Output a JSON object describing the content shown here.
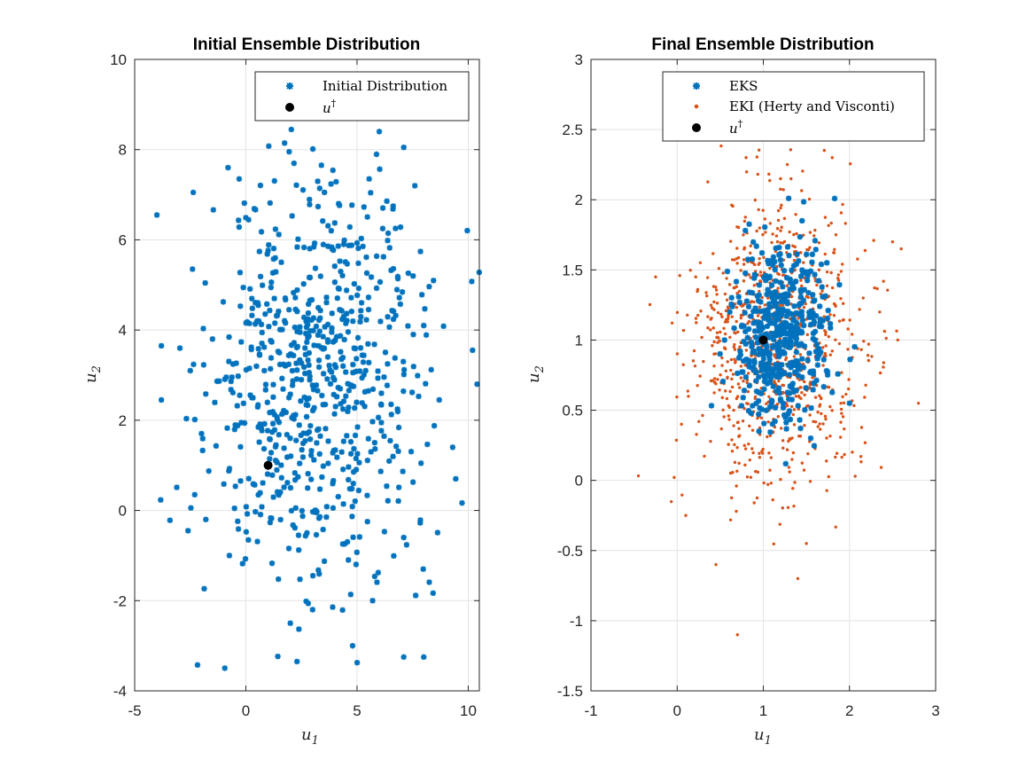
{
  "colors": {
    "eks": "#0072BD",
    "eki": "#D95319",
    "truth": "#000000",
    "grid": "#e3e3e3",
    "axis": "#262626"
  },
  "chart_data": [
    {
      "type": "scatter",
      "title": "Initial Ensemble Distribution",
      "xlabel": "u",
      "xlabel_sub": "1",
      "ylabel": "u",
      "ylabel_sub": "2",
      "xlim": [
        -5,
        10.5
      ],
      "ylim": [
        -4,
        10
      ],
      "xticks": [
        -5,
        0,
        5,
        10
      ],
      "yticks": [
        -4,
        -2,
        0,
        2,
        4,
        6,
        8,
        10
      ],
      "grid": true,
      "legend_position": "top-right",
      "series": [
        {
          "name": "Initial Distribution",
          "marker": "star",
          "color": "#0072BD",
          "count": 700,
          "mean": [
            3.0,
            3.0
          ],
          "sd": [
            2.4,
            2.3
          ],
          "seed": 11,
          "points": [
            [
              -4.0,
              6.55
            ],
            [
              -3.8,
              3.65
            ],
            [
              -3.8,
              2.45
            ],
            [
              -2.6,
              -0.45
            ],
            [
              -2.3,
              0.35
            ],
            [
              -2.4,
              5.35
            ],
            [
              -1.8,
              -0.2
            ],
            [
              -0.8,
              7.6
            ],
            [
              -0.3,
              7.35
            ],
            [
              6.0,
              8.4
            ],
            [
              7.1,
              8.05
            ],
            [
              7.6,
              7.2
            ],
            [
              8.0,
              -3.25
            ],
            [
              7.1,
              -3.25
            ],
            [
              4.8,
              -3.0
            ],
            [
              2.3,
              -3.35
            ],
            [
              2.0,
              -2.5
            ],
            [
              3.0,
              -2.2
            ],
            [
              10.4,
              2.8
            ],
            [
              9.3,
              1.4
            ],
            [
              8.0,
              4.1
            ],
            [
              7.1,
              -0.6
            ],
            [
              5.7,
              -2.0
            ],
            [
              -2.5,
              3.1
            ],
            [
              -1.5,
              3.8
            ]
          ]
        },
        {
          "name": "u",
          "name_sup": "†",
          "marker": "dot",
          "color": "#000000",
          "points": [
            [
              1.0,
              1.0
            ]
          ]
        }
      ]
    },
    {
      "type": "scatter",
      "title": "Final Ensemble Distribution",
      "xlabel": "u",
      "xlabel_sub": "1",
      "ylabel": "u",
      "ylabel_sub": "2",
      "xlim": [
        -1,
        3
      ],
      "ylim": [
        -1.5,
        3
      ],
      "xticks": [
        -1,
        0,
        1,
        2,
        3
      ],
      "yticks": [
        -1.5,
        -1,
        -0.5,
        0,
        0.5,
        1,
        1.5,
        2,
        2.5,
        3
      ],
      "grid": true,
      "legend_position": "top-right",
      "series": [
        {
          "name": "EKI (Herty and Visconti)",
          "marker": "dot-small",
          "color": "#D95319",
          "count": 900,
          "mean": [
            1.15,
            0.95
          ],
          "sd": [
            0.48,
            0.52
          ],
          "seed": 29,
          "points": [
            [
              0.7,
              -1.1
            ],
            [
              0.45,
              -0.6
            ],
            [
              1.4,
              -0.7
            ],
            [
              2.8,
              0.55
            ],
            [
              2.6,
              1.65
            ],
            [
              2.5,
              1.7
            ],
            [
              1.8,
              2.3
            ],
            [
              0.8,
              2.3
            ],
            [
              -0.25,
              1.45
            ],
            [
              0.05,
              0.4
            ],
            [
              0.1,
              -0.25
            ],
            [
              1.5,
              -0.45
            ],
            [
              2.35,
              1.2
            ],
            [
              1.2,
              2.15
            ]
          ]
        },
        {
          "name": "EKS",
          "marker": "star",
          "color": "#0072BD",
          "count": 500,
          "mean": [
            1.2,
            1.02
          ],
          "sd": [
            0.27,
            0.3
          ],
          "seed": 47,
          "points": [
            [
              1.55,
              0.3
            ],
            [
              2.0,
              0.55
            ],
            [
              1.45,
              1.85
            ],
            [
              0.55,
              1.0
            ],
            [
              0.95,
              0.35
            ]
          ]
        },
        {
          "name": "u",
          "name_sup": "†",
          "marker": "dot",
          "color": "#000000",
          "points": [
            [
              1.0,
              1.0
            ]
          ]
        }
      ]
    }
  ]
}
